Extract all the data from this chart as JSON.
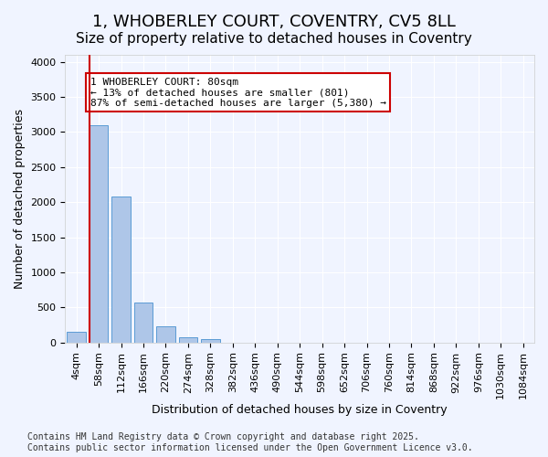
{
  "title_line1": "1, WHOBERLEY COURT, COVENTRY, CV5 8LL",
  "title_line2": "Size of property relative to detached houses in Coventry",
  "xlabel": "Distribution of detached houses by size in Coventry",
  "ylabel": "Number of detached properties",
  "categories": [
    "4sqm",
    "58sqm",
    "112sqm",
    "166sqm",
    "220sqm",
    "274sqm",
    "328sqm",
    "382sqm",
    "436sqm",
    "490sqm",
    "544sqm",
    "598sqm",
    "652sqm",
    "706sqm",
    "760sqm",
    "814sqm",
    "868sqm",
    "922sqm",
    "976sqm",
    "1030sqm",
    "1084sqm"
  ],
  "values": [
    150,
    3100,
    2080,
    570,
    230,
    80,
    50,
    0,
    0,
    0,
    0,
    0,
    0,
    0,
    0,
    0,
    0,
    0,
    0,
    0,
    0
  ],
  "bar_color": "#aec6e8",
  "bar_edge_color": "#5b9bd5",
  "vline_x": 1,
  "vline_color": "#cc0000",
  "annotation_text": "1 WHOBERLEY COURT: 80sqm\n← 13% of detached houses are smaller (801)\n87% of semi-detached houses are larger (5,380) →",
  "annotation_box_color": "#ffffff",
  "annotation_box_edge": "#cc0000",
  "ylim": [
    0,
    4100
  ],
  "yticks": [
    0,
    500,
    1000,
    1500,
    2000,
    2500,
    3000,
    3500,
    4000
  ],
  "footer_text": "Contains HM Land Registry data © Crown copyright and database right 2025.\nContains public sector information licensed under the Open Government Licence v3.0.",
  "bg_color": "#f0f4ff",
  "plot_bg_color": "#f0f4ff",
  "grid_color": "#ffffff",
  "title_fontsize": 13,
  "subtitle_fontsize": 11,
  "axis_label_fontsize": 9,
  "tick_fontsize": 8,
  "annotation_fontsize": 8,
  "footer_fontsize": 7
}
